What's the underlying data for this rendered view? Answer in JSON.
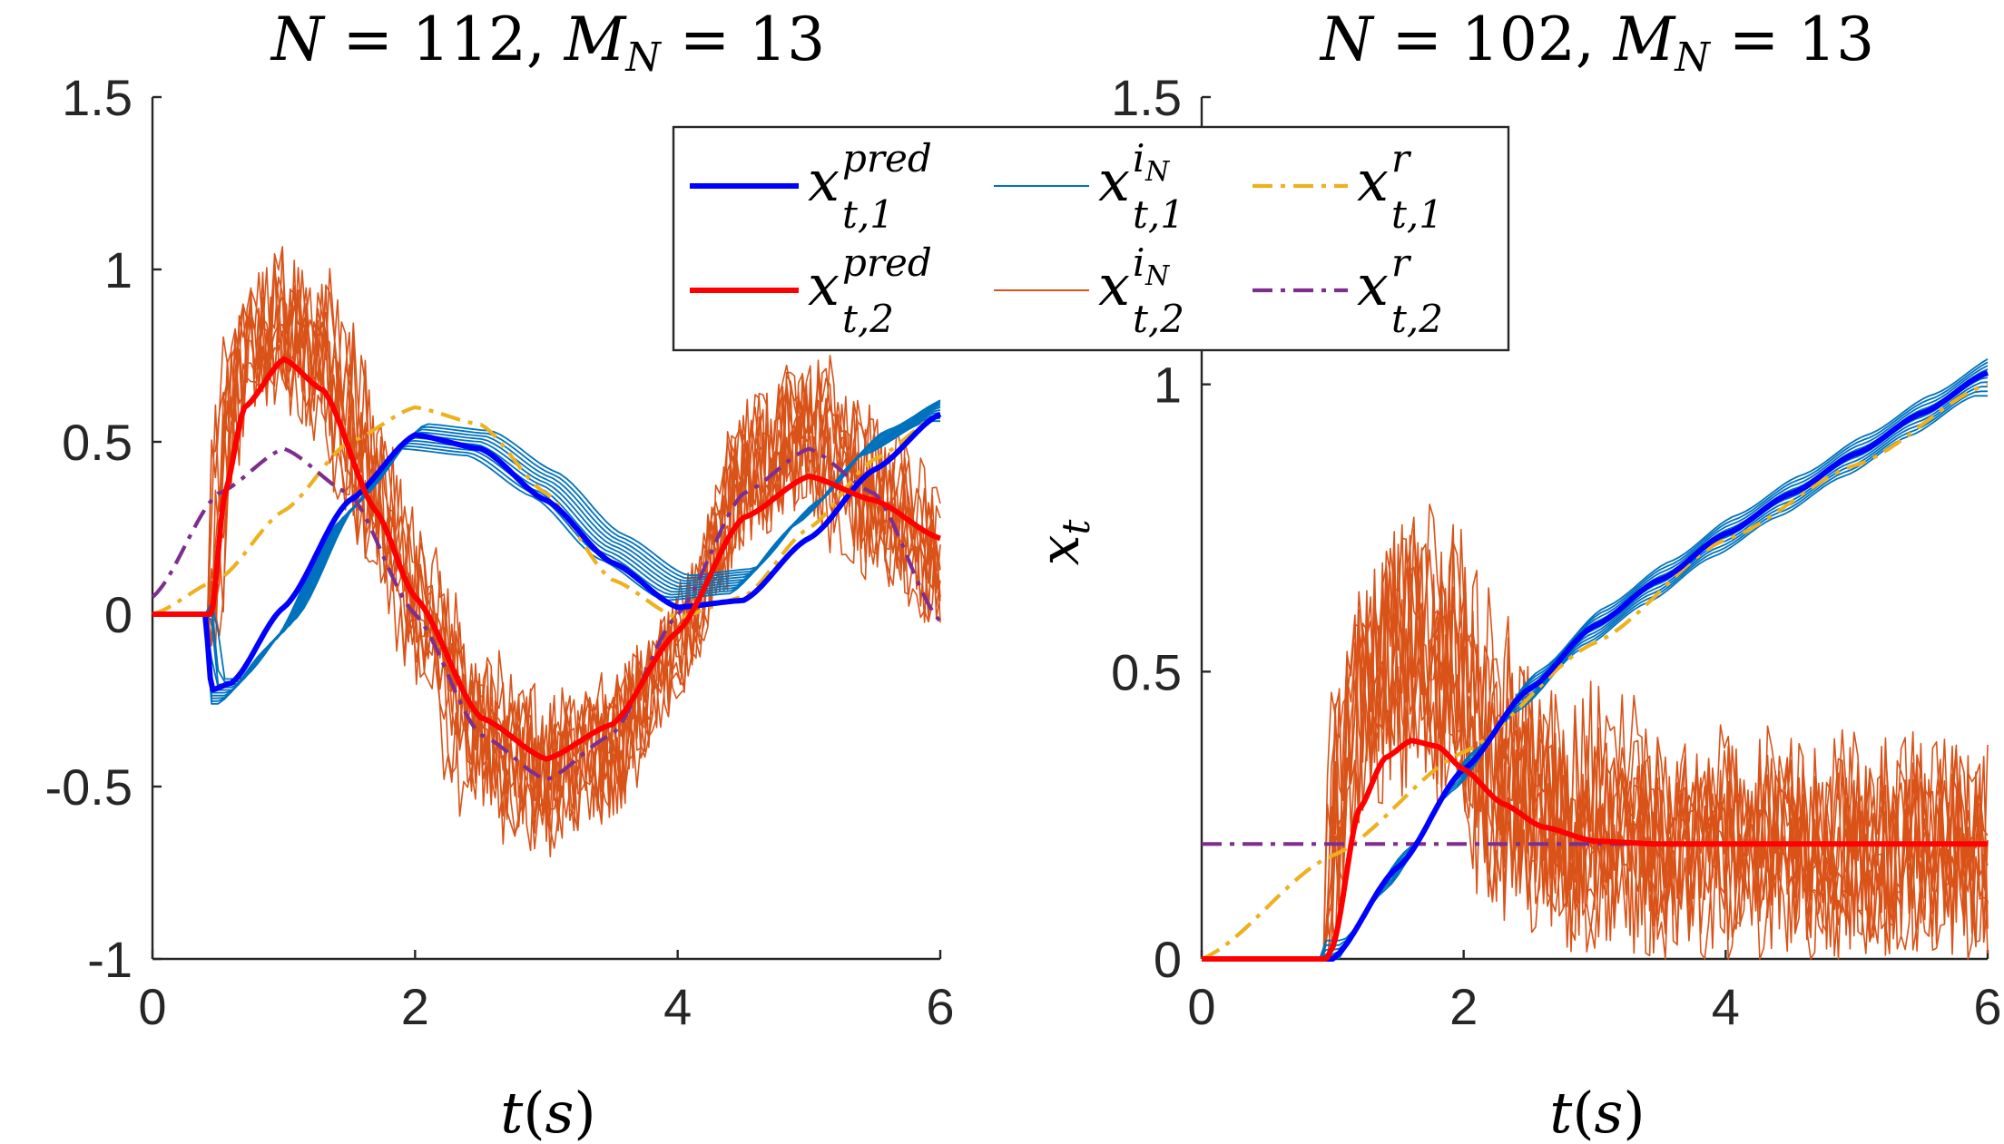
{
  "chart_data": [
    {
      "type": "line",
      "title": "N = 112, M_N = 13",
      "xlabel": "t(s)",
      "ylabel": "",
      "xlim": [
        0,
        6
      ],
      "ylim": [
        -1,
        1.5
      ],
      "xticks": [
        0,
        2,
        4,
        6
      ],
      "xtick_labels": [
        "0",
        "2",
        "4",
        "6"
      ],
      "yticks": [
        -1,
        -0.5,
        0,
        0.5,
        1,
        1.5
      ],
      "ytick_labels": [
        "-1",
        "-0.5",
        "0",
        "0.5",
        "1",
        "1.5"
      ],
      "series": [
        {
          "name": "x_{t,1}^{pred}",
          "color": "#0000ff",
          "style": "solid-thick",
          "x": [
            0,
            0.4,
            0.45,
            0.6,
            1.0,
            1.5,
            2.0,
            2.5,
            3.0,
            3.5,
            4.0,
            4.5,
            5.0,
            5.5,
            6.0
          ],
          "y": [
            0,
            0,
            -0.22,
            -0.2,
            0.02,
            0.33,
            0.52,
            0.48,
            0.33,
            0.15,
            0.02,
            0.04,
            0.22,
            0.42,
            0.58
          ]
        },
        {
          "name": "x_{t,2}^{pred}",
          "color": "#ff0000",
          "style": "solid-thick",
          "x": [
            0,
            0.45,
            0.55,
            0.7,
            1.0,
            1.3,
            1.7,
            2.0,
            2.5,
            3.0,
            3.5,
            4.0,
            4.5,
            5.0,
            5.5,
            6.0
          ],
          "y": [
            0,
            0,
            0.35,
            0.6,
            0.74,
            0.65,
            0.3,
            0.05,
            -0.3,
            -0.42,
            -0.32,
            -0.05,
            0.28,
            0.4,
            0.33,
            0.22
          ]
        },
        {
          "name": "x_{t,1}^{i_N}",
          "color": "#0072bd",
          "style": "thin-bundle",
          "x": [
            0,
            0.4,
            0.45,
            0.6,
            1.0,
            1.5,
            2.0,
            2.5,
            3.0,
            3.5,
            4.0,
            4.5,
            5.0,
            5.5,
            6.0
          ],
          "y": [
            0,
            0,
            -0.22,
            -0.22,
            -0.05,
            0.3,
            0.52,
            0.5,
            0.38,
            0.2,
            0.08,
            0.1,
            0.3,
            0.5,
            0.6
          ]
        },
        {
          "name": "x_{t,2}^{i_N}",
          "color": "#d95319",
          "style": "thin-noisy",
          "x": [
            0,
            0.45,
            0.55,
            0.7,
            1.0,
            1.3,
            1.7,
            2.0,
            2.5,
            3.0,
            3.5,
            4.0,
            4.5,
            5.0,
            5.5,
            6.0
          ],
          "y": [
            0,
            0,
            0.5,
            0.75,
            0.85,
            0.75,
            0.35,
            0.05,
            -0.35,
            -0.45,
            -0.4,
            -0.1,
            0.4,
            0.55,
            0.35,
            0.15
          ]
        },
        {
          "name": "x_{t,1}^{r}",
          "color": "#edb120",
          "style": "dash-dot",
          "x": [
            0,
            0.5,
            1.0,
            1.5,
            2.0,
            2.5,
            3.0,
            3.5,
            4.0,
            4.5,
            5.0,
            5.5,
            6.0
          ],
          "y": [
            0,
            0.1,
            0.3,
            0.5,
            0.6,
            0.55,
            0.35,
            0.1,
            -0.01,
            0.05,
            0.25,
            0.45,
            0.58
          ]
        },
        {
          "name": "x_{t,2}^{r}",
          "color": "#7e2f8e",
          "style": "dash-dot",
          "x": [
            0,
            0.5,
            1.0,
            1.5,
            2.0,
            2.5,
            3.0,
            3.5,
            4.0,
            4.5,
            5.0,
            5.5,
            6.0
          ],
          "y": [
            0.05,
            0.35,
            0.48,
            0.35,
            0,
            -0.35,
            -0.48,
            -0.35,
            0,
            0.35,
            0.48,
            0.35,
            -0.02
          ]
        }
      ]
    },
    {
      "type": "line",
      "title": "N = 102, M_N = 13",
      "xlabel": "t(s)",
      "ylabel": "x_t",
      "xlim": [
        0,
        6
      ],
      "ylim": [
        0,
        1.5
      ],
      "xticks": [
        0,
        2,
        4,
        6
      ],
      "xtick_labels": [
        "0",
        "2",
        "4",
        "6"
      ],
      "yticks": [
        0,
        0.5,
        1,
        1.5
      ],
      "ytick_labels": [
        "0",
        "0.5",
        "1",
        "1.5"
      ],
      "series": [
        {
          "name": "x_{t,1}^{pred}",
          "color": "#0000ff",
          "style": "solid-thick",
          "x": [
            0,
            0.95,
            1.0,
            1.5,
            2.0,
            2.5,
            3.0,
            3.5,
            4.0,
            4.5,
            5.0,
            5.5,
            6.0
          ],
          "y": [
            0,
            0,
            0.0,
            0.16,
            0.33,
            0.47,
            0.58,
            0.66,
            0.74,
            0.81,
            0.88,
            0.95,
            1.02
          ]
        },
        {
          "name": "x_{t,2}^{pred}",
          "color": "#ff0000",
          "style": "solid-thick",
          "x": [
            0,
            0.95,
            1.0,
            1.2,
            1.4,
            1.6,
            1.8,
            2.0,
            2.3,
            2.6,
            3.0,
            3.5,
            4.0,
            5.0,
            6.0
          ],
          "y": [
            0,
            0,
            0.02,
            0.26,
            0.35,
            0.38,
            0.37,
            0.33,
            0.27,
            0.23,
            0.205,
            0.2,
            0.2,
            0.2,
            0.2
          ]
        },
        {
          "name": "x_{t,1}^{i_N}",
          "color": "#0072bd",
          "style": "thin-bundle",
          "x": [
            0,
            0.95,
            1.0,
            1.5,
            2.0,
            2.5,
            3.0,
            3.5,
            4.0,
            4.5,
            5.0,
            5.5,
            6.0
          ],
          "y": [
            0,
            0,
            0.0,
            0.16,
            0.33,
            0.47,
            0.58,
            0.66,
            0.74,
            0.81,
            0.88,
            0.95,
            1.02
          ]
        },
        {
          "name": "x_{t,2}^{i_N}",
          "color": "#d95319",
          "style": "thin-noisy",
          "x": [
            0,
            0.95,
            1.05,
            1.3,
            1.6,
            1.9,
            2.2,
            2.6,
            3.0,
            3.5,
            4.0,
            5.0,
            6.0
          ],
          "y": [
            0,
            0,
            0.3,
            0.5,
            0.55,
            0.5,
            0.35,
            0.25,
            0.22,
            0.2,
            0.2,
            0.2,
            0.2
          ]
        },
        {
          "name": "x_{t,1}^{r}",
          "color": "#edb120",
          "style": "dash-dot",
          "x": [
            0,
            1.0,
            2.0,
            3.0,
            4.0,
            5.0,
            6.0
          ],
          "y": [
            0,
            0.18,
            0.36,
            0.55,
            0.73,
            0.86,
            1.0
          ]
        },
        {
          "name": "x_{t,2}^{r}",
          "color": "#7e2f8e",
          "style": "dash-dot",
          "x": [
            0,
            6.0
          ],
          "y": [
            0.2,
            0.2
          ]
        }
      ]
    }
  ],
  "legend": {
    "placement": "top-center",
    "entries": [
      {
        "base": "x",
        "sup": "pred",
        "sub": "t,1",
        "color": "#0000ff",
        "style": "solid-thick"
      },
      {
        "base": "x",
        "sup": "i",
        "supsub": "N",
        "sub": "t,1",
        "color": "#0072bd",
        "style": "thin"
      },
      {
        "base": "x",
        "sup": "r",
        "sub": "t,1",
        "color": "#edb120",
        "style": "dash-dot"
      },
      {
        "base": "x",
        "sup": "pred",
        "sub": "t,2",
        "color": "#ff0000",
        "style": "solid-thick"
      },
      {
        "base": "x",
        "sup": "i",
        "supsub": "N",
        "sub": "t,2",
        "color": "#d95319",
        "style": "thin"
      },
      {
        "base": "x",
        "sup": "r",
        "sub": "t,2",
        "color": "#7e2f8e",
        "style": "dash-dot"
      }
    ]
  },
  "titles": {
    "left": {
      "a": "N",
      "eq1": " = 112, ",
      "b": "M",
      "bsub": "N",
      "eq2": " = 13"
    },
    "right": {
      "a": "N",
      "eq1": " = 102, ",
      "b": "M",
      "bsub": "N",
      "eq2": " = 13"
    }
  },
  "labels": {
    "xlabel_left": {
      "a": "t",
      "b": "(",
      "c": "s",
      "d": ")"
    },
    "xlabel_right": {
      "a": "t",
      "b": "(",
      "c": "s",
      "d": ")"
    },
    "ylabel_right": {
      "base": "x",
      "sub": "t"
    }
  }
}
